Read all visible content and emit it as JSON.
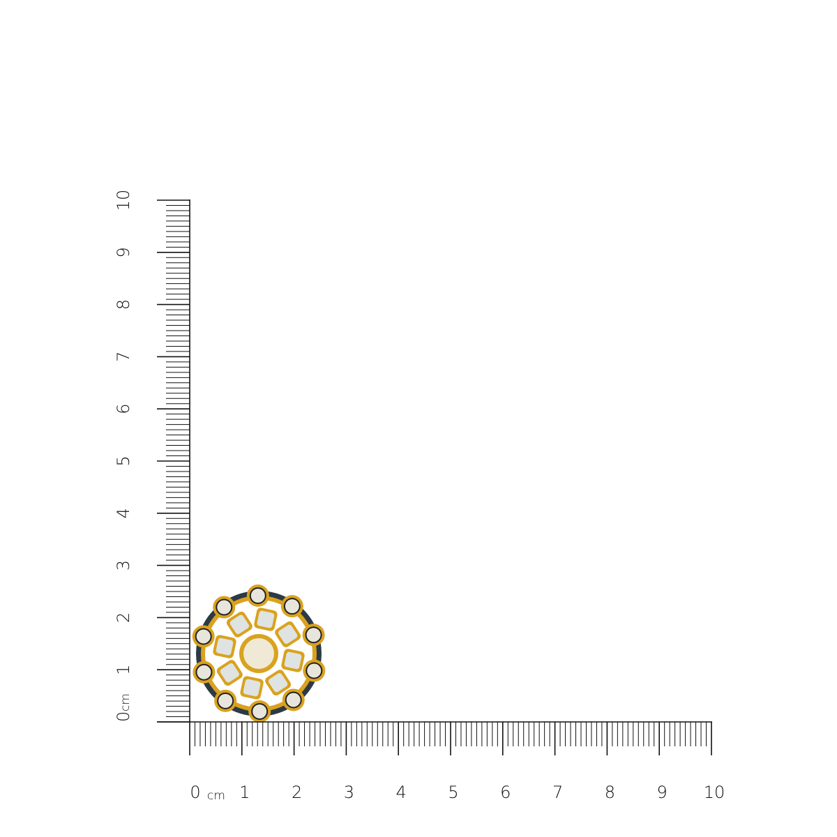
{
  "rulers": {
    "unit": "cm",
    "vertical": {
      "labels": [
        "0",
        "1",
        "2",
        "3",
        "4",
        "5",
        "6",
        "7",
        "8",
        "9",
        "10"
      ],
      "range_cm": [
        0,
        10
      ],
      "subdivisions_per_cm": 10
    },
    "horizontal": {
      "labels": [
        "0",
        "1",
        "2",
        "3",
        "4",
        "5",
        "6",
        "7",
        "8",
        "9",
        "10"
      ],
      "range_cm": [
        0,
        10
      ],
      "subdivisions_per_cm": 10
    }
  },
  "product": {
    "type": "ring",
    "approx_size_cm": {
      "width": 2.6,
      "height": 2.6
    },
    "colors": {
      "gold": "#d9a21f",
      "enamel": "#2d3a44",
      "stone": "#e8e6dc",
      "mother_of_pearl": "#dfe3e2"
    }
  }
}
